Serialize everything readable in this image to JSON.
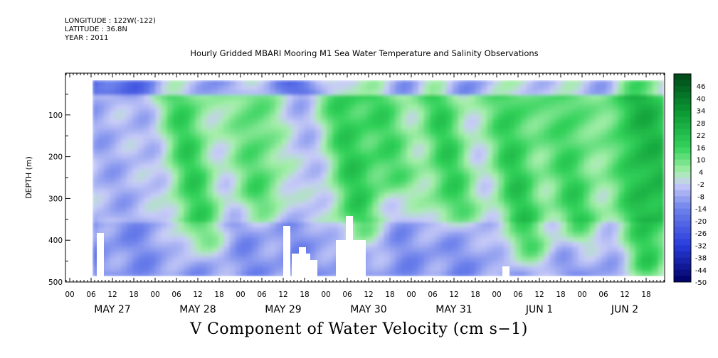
{
  "header": {
    "longitude": "LONGITUDE : 122W(-122)",
    "latitude": "LATITUDE : 36.8N",
    "year": "YEAR : 2011"
  },
  "chart_data": {
    "type": "heatmap",
    "title": "Hourly Gridded MBARI Mooring M1 Sea Water Temperature and Salinity Observations",
    "xlabel": "",
    "ylabel": "DEPTH (m)",
    "bottom_title": "V Component of Water Velocity (cm s−1)",
    "y_ticks": [
      "100",
      "200",
      "300",
      "400",
      "500"
    ],
    "ylim": [
      500,
      0
    ],
    "x_hour_ticks": [
      "00",
      "06",
      "12",
      "18",
      "00",
      "06",
      "12",
      "18",
      "00",
      "06",
      "12",
      "18",
      "00",
      "06",
      "12",
      "18",
      "00",
      "06",
      "12",
      "18",
      "00",
      "06",
      "12",
      "18",
      "00",
      "06",
      "12",
      "18"
    ],
    "x_date_labels": [
      "MAY 27",
      "MAY 28",
      "MAY 29",
      "MAY 30",
      "MAY 31",
      "JUN  1",
      "JUN  2"
    ],
    "colorbar_labels": [
      "46",
      "40",
      "34",
      "28",
      "22",
      "16",
      "10",
      "4",
      "-2",
      "-8",
      "-14",
      "-20",
      "-26",
      "-32",
      "-38",
      "-44",
      "-50"
    ],
    "colorbar_range": [
      -50,
      52
    ],
    "colors": {
      "strong_negative": "#000066",
      "negative": "#3b5ee6",
      "weak_negative": "#9aa6ee",
      "near_zero": "#c9ccf7",
      "weak_positive": "#9ff0a8",
      "positive": "#2ed35a",
      "strong_positive": "#004d1a"
    },
    "pattern_note": ""
  }
}
